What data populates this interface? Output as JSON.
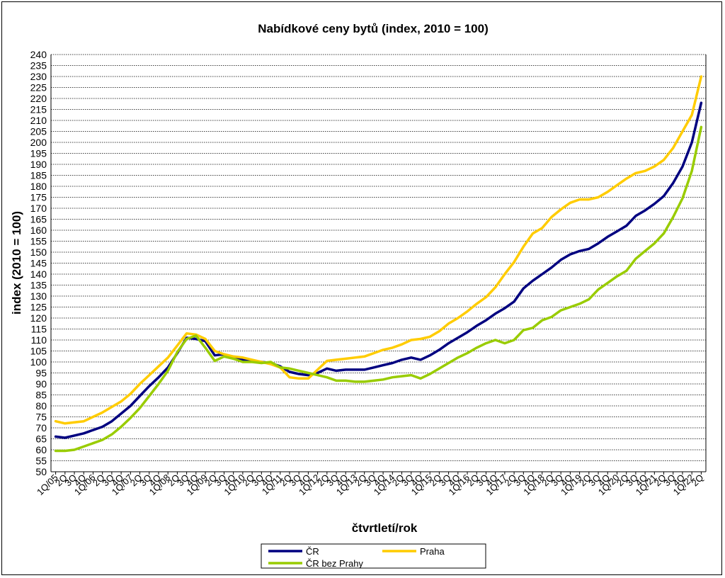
{
  "chart_data": {
    "type": "line",
    "title": "Nabídkové ceny bytů (index, 2010 = 100)",
    "xlabel": "čtvrtletí/rok",
    "ylabel": "index (2010 = 100)",
    "ylim": [
      50,
      240
    ],
    "ytick_step": 5,
    "grid": true,
    "legend_placement": "bottom-center",
    "x_tick_labels": [
      "1Q/05",
      "2Q",
      "3Q",
      "4Q",
      "1Q/06",
      "2Q",
      "3Q",
      "4Q",
      "1Q/07",
      "2Q",
      "3Q",
      "4Q",
      "1Q/08",
      "2Q",
      "3Q",
      "4Q",
      "1Q/09",
      "2Q",
      "3Q",
      "4Q",
      "1Q/10",
      "2Q",
      "3Q",
      "4Q",
      "1Q/11",
      "2Q",
      "3Q",
      "4Q",
      "1Q/12",
      "2Q",
      "3Q",
      "4Q",
      "1Q/13",
      "2Q",
      "3Q",
      "4Q",
      "1Q/14",
      "2Q",
      "3Q",
      "4Q",
      "1Q/15",
      "2Q",
      "3Q",
      "4Q",
      "1Q/16",
      "2Q",
      "3Q",
      "4Q",
      "1Q/17",
      "2Q",
      "3Q",
      "4Q",
      "1Q/18",
      "2Q",
      "3Q",
      "4Q",
      "1Q/19",
      "2Q",
      "3Q",
      "4Q",
      "1Q/20",
      "2Q",
      "3Q",
      "4Q",
      "1Q/21",
      "2Q",
      "3Q",
      "4Q",
      "1Q/22",
      "2Q"
    ],
    "series": [
      {
        "name": "ČR",
        "color": "#000080",
        "values": [
          66,
          65.5,
          66.5,
          67.5,
          69,
          70.5,
          73,
          76.5,
          80,
          84.5,
          89,
          93,
          97.5,
          104,
          111,
          110.5,
          109.5,
          103,
          103.5,
          102,
          101,
          100.5,
          100,
          99.5,
          98,
          95.5,
          94.5,
          94,
          95,
          97,
          96,
          96.5,
          96.5,
          96.5,
          97.5,
          98.5,
          99.5,
          101,
          102,
          101,
          103,
          105.5,
          108.5,
          111,
          113.5,
          116.5,
          119,
          122,
          124.5,
          127.5,
          133.5,
          137,
          140,
          143,
          146.5,
          149,
          150.5,
          151.5,
          154,
          157,
          159.5,
          162,
          166.5,
          169,
          172,
          175.5,
          181.5,
          189,
          200,
          218
        ]
      },
      {
        "name": "Praha",
        "color": "#FFCC00",
        "values": [
          73,
          72,
          72.5,
          73,
          75,
          77,
          79.5,
          82,
          85.5,
          90,
          94,
          98,
          102,
          107.5,
          113,
          112.5,
          110.5,
          105,
          103.5,
          102.5,
          102,
          101,
          100,
          99,
          97.5,
          93,
          92.5,
          92.5,
          96.5,
          100.5,
          101,
          101.5,
          102,
          102.5,
          104,
          105.5,
          106.5,
          108,
          110,
          110.5,
          111.5,
          114,
          117.5,
          120,
          123,
          126.5,
          129.5,
          134,
          140,
          145.5,
          152.5,
          158.5,
          161,
          166,
          169.5,
          172.5,
          174,
          174,
          175,
          177.5,
          180.5,
          183.5,
          186,
          187,
          189,
          192,
          197.5,
          205,
          212.5,
          230
        ]
      },
      {
        "name": "ČR bez Prahy",
        "color": "#99CC00",
        "values": [
          59.5,
          59.5,
          60,
          61.5,
          63,
          64.5,
          67,
          70.5,
          74.5,
          79,
          84.5,
          90,
          96,
          104.5,
          110.5,
          112,
          106.5,
          100.5,
          102.5,
          101.5,
          100,
          100,
          99.5,
          100,
          97.5,
          97,
          96,
          95,
          94,
          93,
          91.5,
          91.5,
          91,
          91,
          91.5,
          92,
          93,
          93.5,
          94,
          92.5,
          94.5,
          97,
          99.5,
          102,
          104,
          106.5,
          108.5,
          110,
          108.5,
          110,
          114.5,
          115.5,
          119,
          120.5,
          123.5,
          125,
          126.5,
          128.5,
          133,
          136,
          139,
          141.5,
          147,
          150.5,
          154,
          158.5,
          166,
          174.5,
          187,
          207
        ]
      }
    ]
  }
}
